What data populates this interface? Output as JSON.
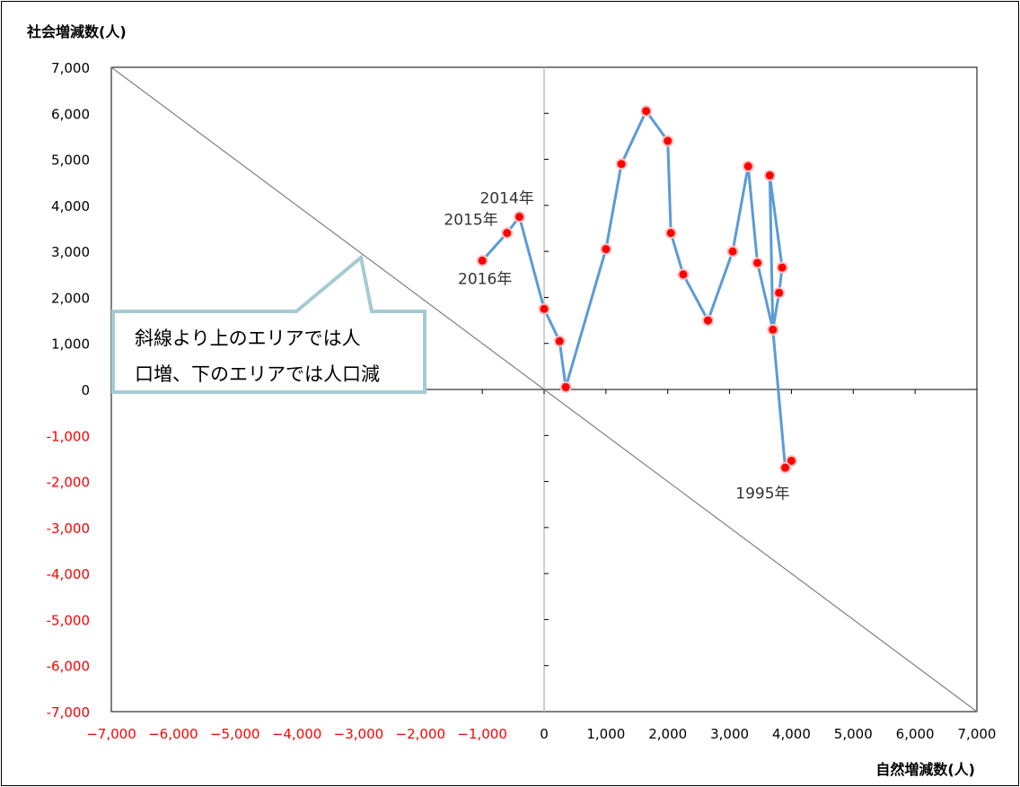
{
  "chart_data": {
    "type": "line",
    "title": "",
    "ylabel": "社会増減数(人)",
    "xlabel": "自然増減数(人)",
    "xlim": [
      -7000,
      7000
    ],
    "ylim": [
      -7000,
      7000
    ],
    "xticks": [
      -7000,
      -6000,
      -5000,
      -4000,
      -3000,
      -2000,
      -1000,
      0,
      1000,
      2000,
      3000,
      4000,
      5000,
      6000,
      7000
    ],
    "yticks": [
      -7000,
      -6000,
      -5000,
      -4000,
      -3000,
      -2000,
      -1000,
      0,
      1000,
      2000,
      3000,
      4000,
      5000,
      6000,
      7000
    ],
    "xtick_labels": [
      "−7,000",
      "−6,000",
      "−5,000",
      "−4,000",
      "−3,000",
      "−2,000",
      "−1,000",
      "0",
      "1,000",
      "2,000",
      "3,000",
      "4,000",
      "5,000",
      "6,000",
      "7,000"
    ],
    "ytick_labels": [
      "7,000",
      "6,000",
      "5,000",
      "4,000",
      "3,000",
      "2,000",
      "1,000",
      "0",
      "-1,000",
      "-2,000",
      "-3,000",
      "-4,000",
      "-5,000",
      "-6,000",
      "-7,000"
    ],
    "grid": false,
    "reference_line": {
      "from": [
        -7000,
        7000
      ],
      "to": [
        7000,
        -7000
      ]
    },
    "series": [
      {
        "color": "#5b9bd5",
        "marker_color": "#ff0000",
        "points": [
          {
            "x": 4000,
            "y": -1550,
            "label": "1995年"
          },
          {
            "x": 3900,
            "y": -1700
          },
          {
            "x": 3700,
            "y": 1300
          },
          {
            "x": 3800,
            "y": 2100
          },
          {
            "x": 3850,
            "y": 2650
          },
          {
            "x": 3650,
            "y": 4650
          },
          {
            "x": 3700,
            "y": 1300
          },
          {
            "x": 3450,
            "y": 2750
          },
          {
            "x": 3300,
            "y": 4850
          },
          {
            "x": 3050,
            "y": 3000
          },
          {
            "x": 2650,
            "y": 1500
          },
          {
            "x": 2250,
            "y": 2500
          },
          {
            "x": 2050,
            "y": 3400
          },
          {
            "x": 2000,
            "y": 5400
          },
          {
            "x": 1650,
            "y": 6050
          },
          {
            "x": 1250,
            "y": 4900
          },
          {
            "x": 1000,
            "y": 3050
          },
          {
            "x": 350,
            "y": 50
          },
          {
            "x": 250,
            "y": 1050
          },
          {
            "x": 0,
            "y": 1750
          },
          {
            "x": -400,
            "y": 3750,
            "label": "2014年"
          },
          {
            "x": -600,
            "y": 3400,
            "label": "2015年"
          },
          {
            "x": -1000,
            "y": 2800,
            "label": "2016年"
          }
        ]
      }
    ],
    "annotation": {
      "line1": "斜線より上のエリアでは人",
      "line2": "口増、下のエリアでは人口減"
    }
  }
}
